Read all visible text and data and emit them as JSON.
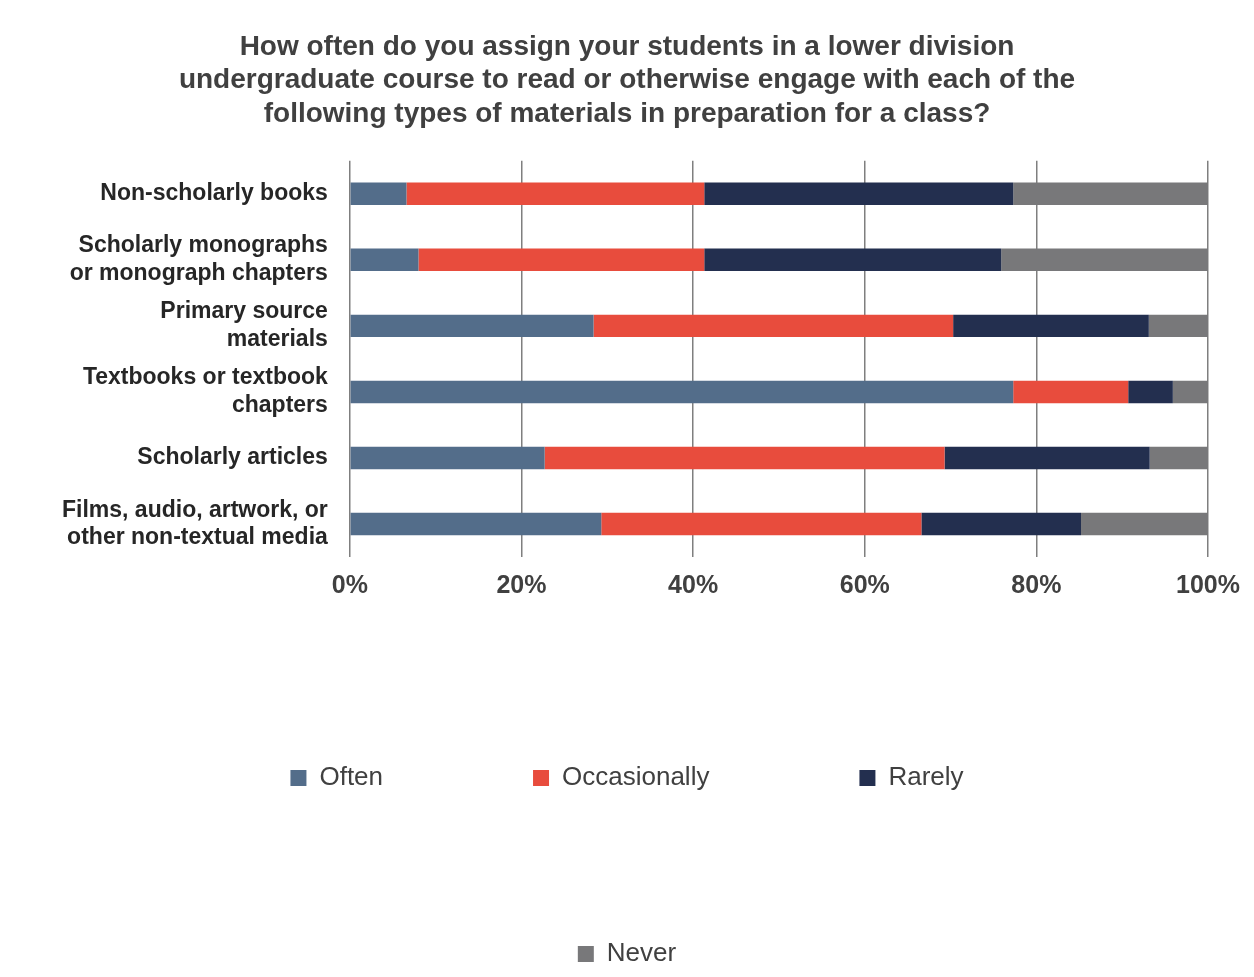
{
  "chart_data": {
    "type": "bar",
    "orientation": "horizontal",
    "stacked": true,
    "title": "How often do you assign your students in a lower division undergraduate course to read or otherwise engage with each of the following types of materials in preparation for a class?",
    "categories": [
      "Non-scholarly books",
      "Scholarly monographs or monograph chapters",
      "Primary source materials",
      "Textbooks or textbook chapters",
      "Scholarly articles",
      "Films, audio, artwork, or other non-textual media"
    ],
    "series": [
      {
        "name": "Often",
        "color": "#536d8a",
        "values": [
          6.6,
          8.0,
          28.4,
          77.3,
          22.7,
          29.3
        ]
      },
      {
        "name": "Occasionally",
        "color": "#e84c3d",
        "values": [
          34.7,
          33.3,
          41.9,
          13.4,
          46.6,
          37.3
        ]
      },
      {
        "name": "Rarely",
        "color": "#232f4f",
        "values": [
          36.0,
          34.6,
          22.8,
          5.2,
          23.9,
          18.6
        ]
      },
      {
        "name": "Never",
        "color": "#78787a",
        "values": [
          22.7,
          24.1,
          6.9,
          4.1,
          6.8,
          14.8
        ]
      }
    ],
    "xlim": [
      0,
      100
    ],
    "xticks": [
      {
        "value": 0,
        "label": "0%"
      },
      {
        "value": 20,
        "label": "20%"
      },
      {
        "value": 40,
        "label": "40%"
      },
      {
        "value": 60,
        "label": "60%"
      },
      {
        "value": 80,
        "label": "80%"
      },
      {
        "value": 100,
        "label": "100%"
      }
    ],
    "grid": "x",
    "legend": "bottom"
  }
}
